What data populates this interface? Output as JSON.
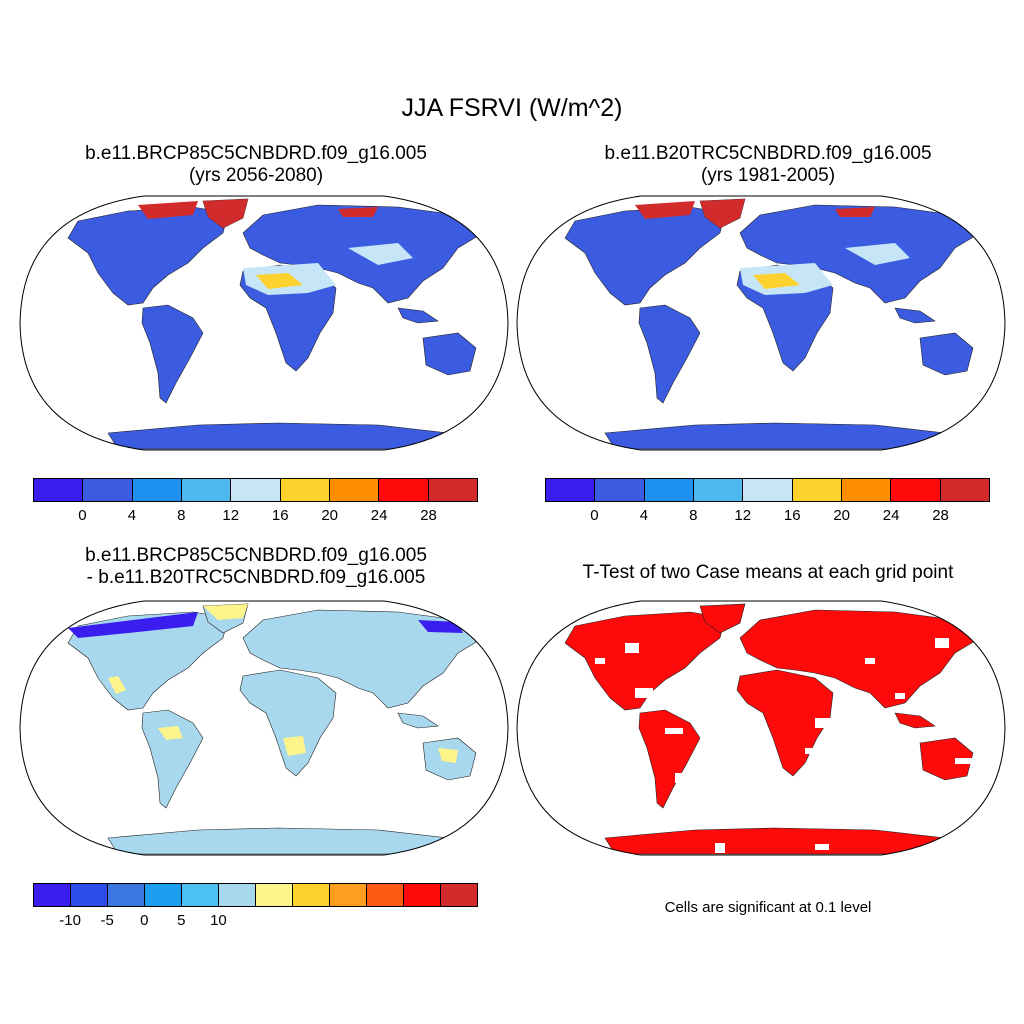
{
  "title": "JJA FSRVI (W/m^2)",
  "panels": {
    "p1": {
      "line1": "b.e11.BRCP85C5CNBDRD.f09_g16.005",
      "line2": "(yrs 2056-2080)"
    },
    "p2": {
      "line1": "b.e11.B20TRC5CNBDRD.f09_g16.005",
      "line2": "(yrs 1981-2005)"
    },
    "p3": {
      "line1": "b.e11.BRCP85C5CNBDRD.f09_g16.005",
      "line2": "- b.e11.B20TRC5CNBDRD.f09_g16.005"
    },
    "p4": {
      "line1": "T-Test of two Case means at each grid point"
    }
  },
  "colorbar_abs": {
    "colors": [
      "#3a1ef0",
      "#3b5ce0",
      "#1e90f0",
      "#4cb8ee",
      "#c6e6f8",
      "#fdd22e",
      "#fd8c00",
      "#fe0a0a",
      "#d22b2b"
    ],
    "ticks": [
      "0",
      "4",
      "8",
      "12",
      "16",
      "20",
      "24",
      "28"
    ]
  },
  "colorbar_diff": {
    "colors": [
      "#3a1ef0",
      "#2e4ce8",
      "#3a78e0",
      "#1e9ef0",
      "#4cc0f0",
      "#a8d8ee",
      "#fdf58c",
      "#fdd22e",
      "#fd9e1e",
      "#fd5a14",
      "#fe0a0a",
      "#d22b2b"
    ],
    "ticks": [
      "-10",
      "-5",
      "0",
      "5",
      "10"
    ]
  },
  "map_colors": {
    "ocean": "#ffffff",
    "land_abs": "#3b5ce0",
    "desert_abs": "#c6e6f8",
    "hot_abs": "#fdd22e",
    "arctic_abs": "#d22b2b",
    "land_diff": "#a8d8ee",
    "pos_diff": "#fdf58c",
    "neg_diff": "#3a1ef0",
    "sig": "#fe0a0a"
  },
  "significance_note": "Cells are significant at 0.1 level"
}
